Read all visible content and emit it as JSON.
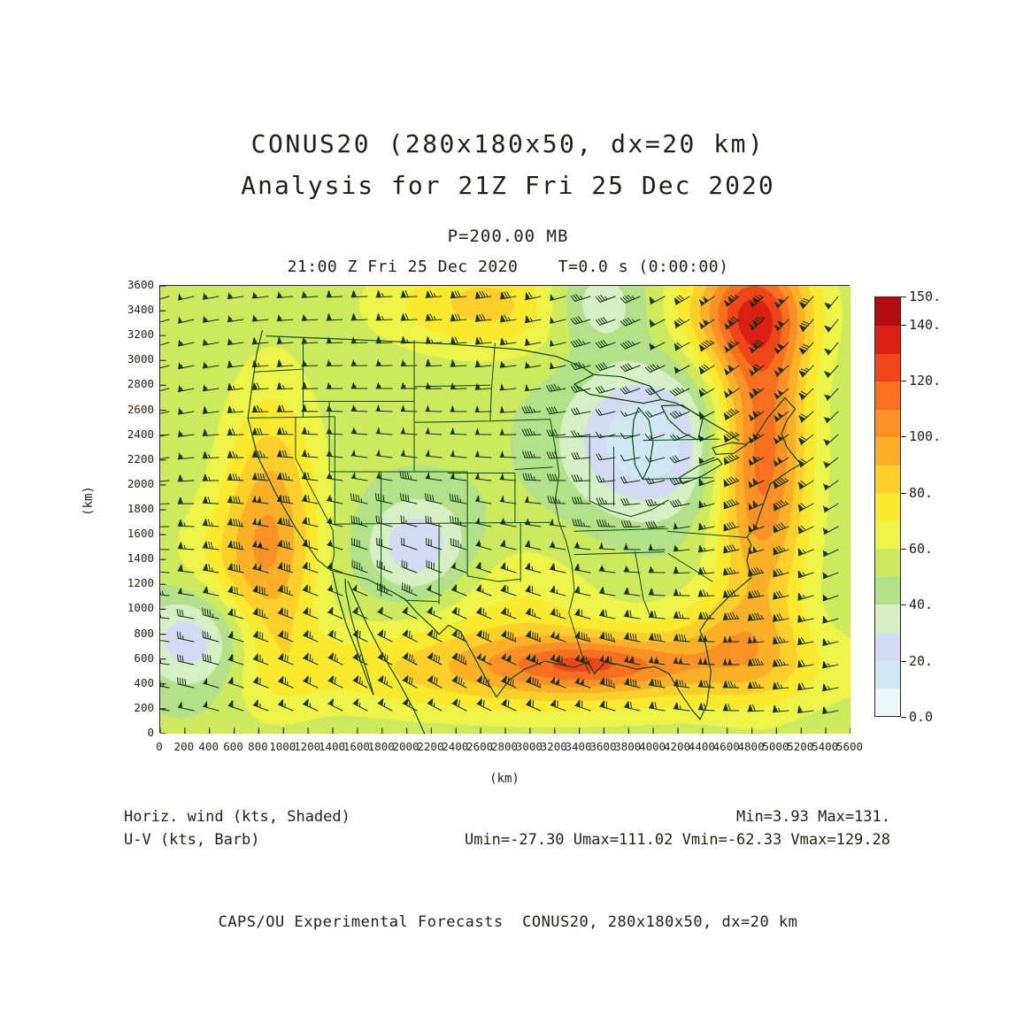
{
  "header": {
    "title_line1": "CONUS20 (280x180x50, dx=20 km)",
    "title_line2": "Analysis for 21Z Fri 25 Dec 2020",
    "pressure": "P=200.00 MB",
    "time_line": "21:00 Z Fri 25 Dec 2020    T=0.0 s (0:00:00)"
  },
  "legend": {
    "shaded": "Horiz. wind (kts, Shaded)",
    "barb": "U-V (kts, Barb)",
    "minmax": "Min=3.93 Max=131.",
    "uv_minmax": "Umin=-27.30 Umax=111.02 Vmin=-62.33 Vmax=129.28"
  },
  "footer": {
    "credit": "CAPS/OU Experimental Forecasts  CONUS20, 280x180x50, dx=20 km"
  },
  "chart_data": {
    "type": "heatmap",
    "title": "CONUS20 (280x180x50, dx=20 km) Analysis for 21Z Fri 25 Dec 2020",
    "subtitle": "P=200.00 MB",
    "field_name": "Horizontal wind (kts, Shaded) with U-V (kts, Barb)",
    "xlabel": "(km)",
    "ylabel": "(km)",
    "x_range": [
      0,
      5600
    ],
    "y_range": [
      0,
      3600
    ],
    "x_ticks": [
      "0",
      "200",
      "400",
      "600",
      "800",
      "1000",
      "1200",
      "1400",
      "1600",
      "1800",
      "2000",
      "2200",
      "2400",
      "2600",
      "2800",
      "3000",
      "3200",
      "3400",
      "3600",
      "3800",
      "4000",
      "4200",
      "4400",
      "4600",
      "4800",
      "5000",
      "5200",
      "5400",
      "5600"
    ],
    "y_ticks": [
      "0",
      "200",
      "400",
      "600",
      "800",
      "1000",
      "1200",
      "1400",
      "1600",
      "1800",
      "2000",
      "2200",
      "2400",
      "2600",
      "2800",
      "3000",
      "3200",
      "3400",
      "3600"
    ],
    "stats": {
      "min": 3.93,
      "max": 131.0,
      "umin": -27.3,
      "umax": 111.02,
      "vmin": -62.33,
      "vmax": 129.28
    },
    "colorbar": {
      "min": 0,
      "max": 150,
      "interval": 10,
      "ticks": [
        {
          "value": 150,
          "label": "150."
        },
        {
          "value": 140,
          "label": "140."
        },
        {
          "value": 120,
          "label": "120."
        },
        {
          "value": 100,
          "label": "100."
        },
        {
          "value": 80,
          "label": "80."
        },
        {
          "value": 60,
          "label": "60."
        },
        {
          "value": 40,
          "label": "40."
        },
        {
          "value": 20,
          "label": "20."
        },
        {
          "value": 0,
          "label": "0.0"
        }
      ],
      "colors": [
        "#edf6fa",
        "#cfe8f4",
        "#d4daf3",
        "#d6efc4",
        "#b2e189",
        "#cdea5f",
        "#eef347",
        "#fbe92e",
        "#fccf2b",
        "#fbb028",
        "#f99125",
        "#f76f1f",
        "#ef4518",
        "#d92012",
        "#b00c10"
      ]
    },
    "shading": {
      "base": 52,
      "features": [
        {
          "name": "east-coast-jet-max",
          "x": 4880,
          "y": 2300,
          "sx": 270,
          "sy": 950,
          "amp": 66
        },
        {
          "name": "northeast-corner-max",
          "x": 4750,
          "y": 3400,
          "sx": 380,
          "sy": 330,
          "amp": 52
        },
        {
          "name": "southern-jet-band",
          "x": 3200,
          "y": 520,
          "sx": 1500,
          "sy": 260,
          "amp": 40
        },
        {
          "name": "southern-jet-core",
          "x": 3500,
          "y": 560,
          "sx": 500,
          "sy": 140,
          "amp": 30
        },
        {
          "name": "west-coast-band",
          "x": 900,
          "y": 1650,
          "sx": 280,
          "sy": 780,
          "amp": 44
        },
        {
          "name": "southwest-extension",
          "x": 500,
          "y": 1300,
          "sx": 350,
          "sy": 400,
          "amp": 16
        },
        {
          "name": "north-central-band",
          "x": 2700,
          "y": 3450,
          "sx": 650,
          "sy": 280,
          "amp": 32
        },
        {
          "name": "great-lakes-min",
          "x": 3950,
          "y": 2350,
          "sx": 450,
          "sy": 420,
          "amp": -42
        },
        {
          "name": "north-central-min",
          "x": 3520,
          "y": 3460,
          "sx": 300,
          "sy": 240,
          "amp": -30
        },
        {
          "name": "colorado-min",
          "x": 2100,
          "y": 1500,
          "sx": 300,
          "sy": 280,
          "amp": -32
        },
        {
          "name": "southwest-min",
          "x": 300,
          "y": 750,
          "sx": 330,
          "sy": 300,
          "amp": -38
        },
        {
          "name": "southeast-coast-max",
          "x": 4600,
          "y": 800,
          "sx": 350,
          "sy": 280,
          "amp": 20
        },
        {
          "name": "texas-ridge",
          "x": 2900,
          "y": 1100,
          "sx": 500,
          "sy": 350,
          "amp": 15
        }
      ]
    },
    "wind_barbs": {
      "units": "kts",
      "half_barb": 5,
      "full_barb": 10,
      "flag": 50
    },
    "map_line_color": "#0a4a0a",
    "barb_color": "#123012",
    "frame_color": "#262626",
    "text_color": "#241e19"
  }
}
